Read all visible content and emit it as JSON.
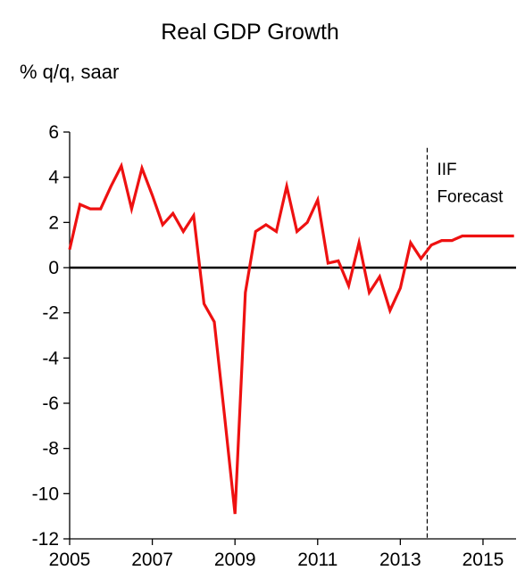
{
  "chart_data": {
    "type": "line",
    "title": "Real GDP Growth",
    "ylabel": "% q/q, saar",
    "xlabel": "",
    "ylim": [
      -12,
      6
    ],
    "xlim": [
      2005,
      2015.8
    ],
    "yticks": [
      6,
      4,
      2,
      0,
      -2,
      -4,
      -6,
      -8,
      -10,
      -12
    ],
    "xticks": [
      2005,
      2007,
      2009,
      2011,
      2013,
      2015
    ],
    "zero_line": true,
    "grid": false,
    "annotation": {
      "text_line1": "IIF",
      "text_line2": "Forecast",
      "x": 2013.65
    },
    "series": [
      {
        "color": "#ee1111",
        "x": [
          2005.0,
          2005.25,
          2005.5,
          2005.75,
          2006.0,
          2006.25,
          2006.5,
          2006.75,
          2007.0,
          2007.25,
          2007.5,
          2007.75,
          2008.0,
          2008.25,
          2008.5,
          2008.75,
          2009.0,
          2009.25,
          2009.5,
          2009.75,
          2010.0,
          2010.25,
          2010.5,
          2010.75,
          2011.0,
          2011.25,
          2011.5,
          2011.75,
          2012.0,
          2012.25,
          2012.5,
          2012.75,
          2013.0,
          2013.25,
          2013.5,
          2013.75,
          2014.0,
          2014.25,
          2014.5,
          2014.75,
          2015.0,
          2015.25,
          2015.5,
          2015.75
        ],
        "values": [
          0.8,
          2.8,
          2.6,
          2.6,
          3.6,
          4.5,
          2.6,
          4.4,
          3.2,
          1.9,
          2.4,
          1.6,
          2.3,
          -1.6,
          -2.4,
          -6.6,
          -10.9,
          -1.1,
          1.6,
          1.9,
          1.6,
          3.6,
          1.6,
          2.0,
          3.0,
          0.2,
          0.3,
          -0.8,
          1.1,
          -1.1,
          -0.4,
          -1.9,
          -0.9,
          1.1,
          0.4,
          1.0,
          1.2,
          1.2,
          1.4,
          1.4,
          1.4,
          1.4,
          1.4,
          1.4
        ]
      }
    ]
  }
}
